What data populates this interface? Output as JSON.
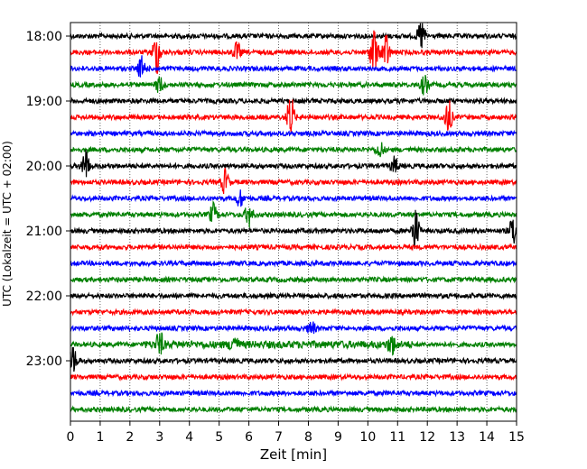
{
  "chart_data": {
    "type": "line",
    "title": "",
    "xlabel": "Zeit  [min]",
    "ylabel": "UTC (Lokalzeit = UTC + 02:00)",
    "xlim": [
      0,
      15
    ],
    "x_ticks": [
      "0",
      "1",
      "2",
      "3",
      "4",
      "5",
      "6",
      "7",
      "8",
      "9",
      "10",
      "11",
      "12",
      "13",
      "14",
      "15"
    ],
    "y_ticks": [
      {
        "label": "18:00",
        "trace": 0
      },
      {
        "label": "19:00",
        "trace": 4
      },
      {
        "label": "20:00",
        "trace": 8
      },
      {
        "label": "21:00",
        "trace": 12
      },
      {
        "label": "22:00",
        "trace": 16
      },
      {
        "label": "23:00",
        "trace": 20
      }
    ],
    "grid": "vertical-dotted",
    "trace_minutes": 15,
    "trace_colors": [
      "#000000",
      "#ff0000",
      "#0000ff",
      "#008000"
    ],
    "traces": [
      {
        "start": "18:00",
        "events": [
          {
            "t": 11.8,
            "a": 1.3
          }
        ]
      },
      {
        "start": "18:15",
        "events": [
          {
            "t": 2.9,
            "a": 1.8
          },
          {
            "t": 10.2,
            "a": 2.2
          },
          {
            "t": 10.6,
            "a": 1.6
          },
          {
            "t": 5.6,
            "a": 0.8
          }
        ]
      },
      {
        "start": "18:30",
        "events": [
          {
            "t": 2.4,
            "a": 1.0
          }
        ]
      },
      {
        "start": "18:45",
        "events": [
          {
            "t": 3.0,
            "a": 0.7
          },
          {
            "t": 11.9,
            "a": 0.8
          }
        ]
      },
      {
        "start": "19:00",
        "events": []
      },
      {
        "start": "19:15",
        "events": [
          {
            "t": 7.4,
            "a": 1.8
          },
          {
            "t": 12.7,
            "a": 1.5
          }
        ]
      },
      {
        "start": "19:30",
        "events": []
      },
      {
        "start": "19:45",
        "events": [
          {
            "t": 10.4,
            "a": 0.7
          }
        ]
      },
      {
        "start": "20:00",
        "events": [
          {
            "t": 0.5,
            "a": 1.4
          },
          {
            "t": 10.9,
            "a": 0.7
          }
        ]
      },
      {
        "start": "20:15",
        "events": [
          {
            "t": 5.2,
            "a": 1.1
          }
        ]
      },
      {
        "start": "20:30",
        "events": [
          {
            "t": 5.7,
            "a": 0.7
          }
        ]
      },
      {
        "start": "20:45",
        "events": [
          {
            "t": 4.8,
            "a": 0.9
          },
          {
            "t": 6.0,
            "a": 1.0
          }
        ]
      },
      {
        "start": "21:00",
        "events": [
          {
            "t": 11.6,
            "a": 1.8
          },
          {
            "t": 14.9,
            "a": 1.4
          }
        ]
      },
      {
        "start": "21:15",
        "events": []
      },
      {
        "start": "21:30",
        "events": []
      },
      {
        "start": "21:45",
        "events": []
      },
      {
        "start": "22:00",
        "events": []
      },
      {
        "start": "22:15",
        "events": []
      },
      {
        "start": "22:30",
        "events": [
          {
            "t": 8.1,
            "a": 0.6
          }
        ]
      },
      {
        "start": "22:45",
        "events": [
          {
            "t": 3.0,
            "a": 1.0
          },
          {
            "t": 5.5,
            "a": 0.8
          },
          {
            "t": 10.8,
            "a": 0.8
          }
        ]
      },
      {
        "start": "23:00",
        "events": [
          {
            "t": 0.1,
            "a": 1.1
          }
        ]
      },
      {
        "start": "23:15",
        "events": []
      },
      {
        "start": "23:30",
        "events": []
      },
      {
        "start": "23:45",
        "events": []
      }
    ]
  }
}
